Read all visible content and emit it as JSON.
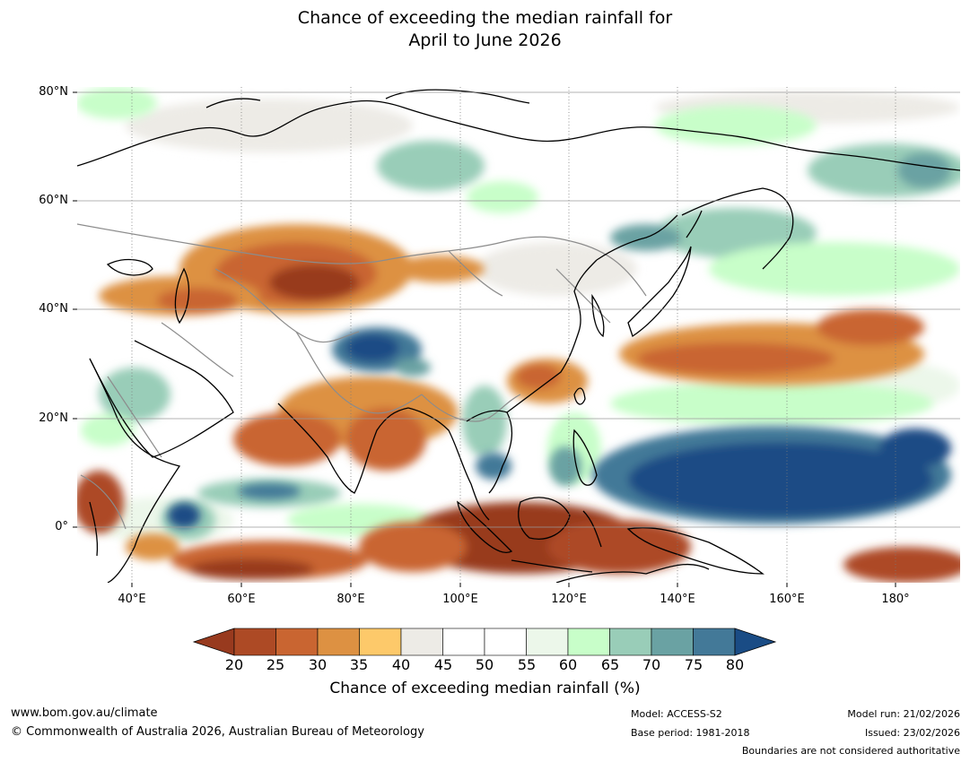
{
  "title": {
    "line1": "Chance of exceeding the median rainfall for",
    "line2": "April to June 2026"
  },
  "lat_labels": [
    "80°N",
    "60°N",
    "40°N",
    "20°N",
    "0°"
  ],
  "lon_labels": [
    "40°E",
    "60°E",
    "80°E",
    "100°E",
    "120°E",
    "140°E",
    "160°E",
    "180°"
  ],
  "colorbar": {
    "title": "Chance of exceeding median rainfall (%)",
    "ticks": [
      "20",
      "25",
      "30",
      "35",
      "40",
      "45",
      "50",
      "55",
      "60",
      "65",
      "70",
      "75",
      "80"
    ],
    "colors": {
      "below_20": "#983a1e",
      "c20_25": "#ad4a25",
      "c25_30": "#c96531",
      "c30_35": "#dd9142",
      "c35_40": "#fdc96a",
      "c40_45": "#edebe6",
      "c45_50": "#ffffff",
      "c50_55": "#ffffff",
      "c55_60": "#ecf7ea",
      "c60_65": "#c8fec9",
      "c65_70": "#99cdb8",
      "c70_75": "#6aa2a3",
      "c75_80": "#437998",
      "above_80": "#1a4c85"
    }
  },
  "footer": {
    "website": "www.bom.gov.au/climate",
    "copyright": "© Commonwealth of Australia 2026, Australian Bureau of Meteorology",
    "model": "Model: ACCESS-S2",
    "base_period": "Base period: 1981-2018",
    "model_run": "Model run: 21/02/2026",
    "issued": "Issued: 23/02/2026",
    "disclaimer": "Boundaries are not considered authoritative"
  }
}
